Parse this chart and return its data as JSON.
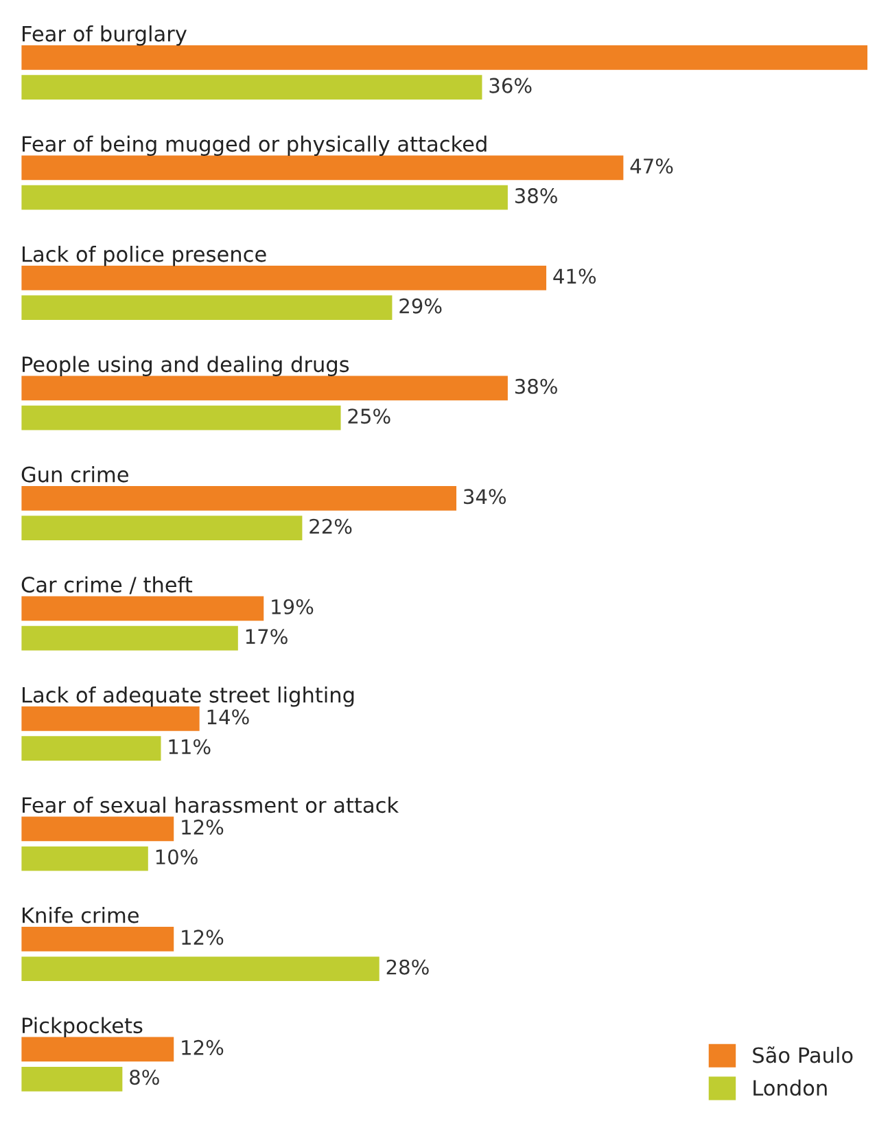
{
  "chart_data": {
    "type": "bar",
    "orientation": "horizontal",
    "legend": "bottom right",
    "categories": [
      "Fear of burglary",
      "Fear of being mugged or physically attacked",
      "Lack of police presence",
      "People using and dealing drugs",
      "Gun crime",
      "Car crime / theft",
      "Lack of adequate street lighting",
      "Fear of sexual harassment or attack",
      "Knife crime",
      "Pickpockets"
    ],
    "series": [
      {
        "name": "São Paulo",
        "color": "#f08122",
        "values": [
          66,
          47,
          41,
          38,
          34,
          19,
          14,
          12,
          12,
          12
        ],
        "value_labels": [
          null,
          "47%",
          "41%",
          "38%",
          "34%",
          "19%",
          "14%",
          "12%",
          "12%",
          "12%"
        ]
      },
      {
        "name": "London",
        "color": "#bfcd31",
        "values": [
          36,
          38,
          29,
          25,
          22,
          17,
          11,
          10,
          28,
          8
        ],
        "value_labels": [
          "36%",
          "38%",
          "29%",
          "25%",
          "22%",
          "17%",
          "11%",
          "10%",
          "28%",
          "8%"
        ]
      }
    ]
  }
}
